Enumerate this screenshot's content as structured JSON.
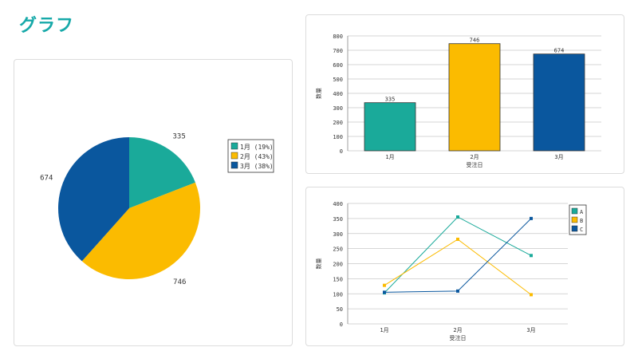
{
  "page": {
    "title": "グラフ"
  },
  "colors": {
    "teal": "#1aaa9a",
    "yellow": "#fbbb00",
    "blue": "#0a579e"
  },
  "chart_data": [
    {
      "type": "pie",
      "slices": [
        {
          "label": "1月",
          "value": 335,
          "percent_label": "19%",
          "color": "#1aaa9a"
        },
        {
          "label": "2月",
          "value": 746,
          "percent_label": "43%",
          "color": "#fbbb00"
        },
        {
          "label": "3月",
          "value": 674,
          "percent_label": "38%",
          "color": "#0a579e"
        }
      ],
      "legend": [
        "1月 (19%)",
        "2月 (43%)",
        "3月 (38%)"
      ],
      "legend_position": "right"
    },
    {
      "type": "bar",
      "categories": [
        "1月",
        "2月",
        "3月"
      ],
      "values": [
        335,
        746,
        674
      ],
      "colors": [
        "#1aaa9a",
        "#fbbb00",
        "#0a579e"
      ],
      "xlabel": "受注日",
      "ylabel": "数量",
      "ylim": [
        0,
        800
      ],
      "yticks": [
        0,
        100,
        200,
        300,
        400,
        500,
        600,
        700,
        800
      ],
      "grid": true
    },
    {
      "type": "line",
      "categories": [
        "1月",
        "2月",
        "3月"
      ],
      "series": [
        {
          "name": "A",
          "values": [
            103,
            355,
            227
          ],
          "color": "#1aaa9a"
        },
        {
          "name": "B",
          "values": [
            128,
            281,
            97
          ],
          "color": "#fbbb00"
        },
        {
          "name": "C",
          "values": [
            105,
            109,
            350
          ],
          "color": "#0a579e"
        }
      ],
      "xlabel": "受注日",
      "ylabel": "数量",
      "ylim": [
        0,
        400
      ],
      "yticks": [
        0,
        50,
        100,
        150,
        200,
        250,
        300,
        350,
        400
      ],
      "grid": true,
      "legend_position": "top-right"
    }
  ]
}
